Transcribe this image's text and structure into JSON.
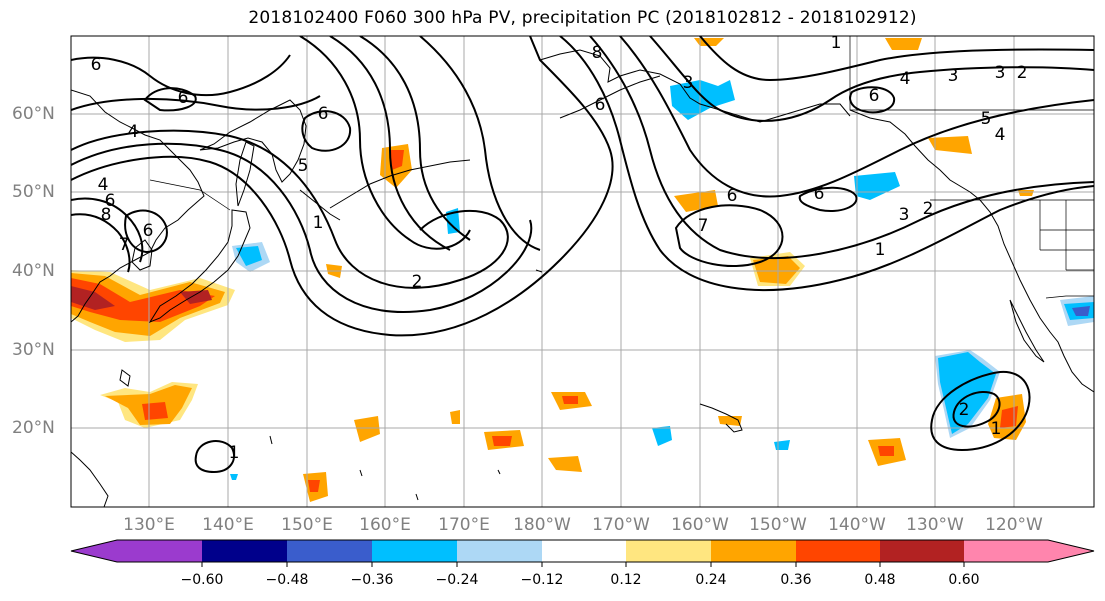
{
  "map": {
    "title": "2018102400 F060 300 hPa PV, precipitation PC (2018102812 - 2018102912)",
    "lat_labels": [
      "60°N",
      "50°N",
      "40°N",
      "30°N",
      "20°N"
    ],
    "lon_labels": [
      "130°E",
      "140°E",
      "150°E",
      "160°E",
      "170°E",
      "180°W",
      "170°W",
      "160°W",
      "150°W",
      "140°W",
      "130°W",
      "120°W"
    ],
    "contour_labels": [
      "6",
      "6",
      "6",
      "5",
      "4",
      "4",
      "1",
      "2",
      "3",
      "6",
      "6",
      "8",
      "6",
      "1",
      "3",
      "4",
      "3",
      "2",
      "5",
      "4",
      "6",
      "6",
      "3",
      "2",
      "1",
      "7",
      "2",
      "1",
      "8",
      "7",
      "6",
      "1"
    ]
  },
  "colorbar": {
    "tick_labels": [
      "−0.60",
      "−0.48",
      "−0.36",
      "−0.24",
      "−0.12",
      "0.12",
      "0.24",
      "0.36",
      "0.48",
      "0.60"
    ],
    "colors": [
      "#9b3bce",
      "#00008b",
      "#3a5dcc",
      "#00bfff",
      "#add8f5",
      "#ffffff",
      "#ffe680",
      "#ffa500",
      "#ff4500",
      "#b22222",
      "#ff85ad"
    ]
  }
}
